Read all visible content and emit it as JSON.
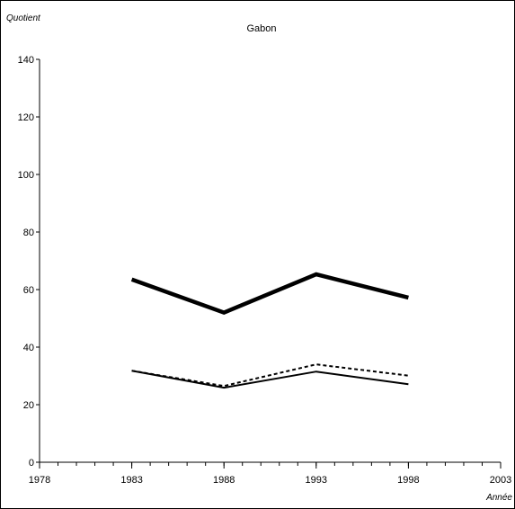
{
  "chart_data": {
    "type": "line",
    "title": "Gabon",
    "ylabel": "Quotient",
    "xlabel": "Année",
    "x_ticks": [
      "1978",
      "1983",
      "1988",
      "1993",
      "1998",
      "2003"
    ],
    "y_ticks": [
      "0",
      "20",
      "40",
      "60",
      "80",
      "100",
      "120",
      "140"
    ],
    "xlim": [
      1978,
      2003
    ],
    "ylim": [
      0,
      140
    ],
    "grid": false,
    "legend": "none",
    "series": [
      {
        "x": [
          1983,
          1988,
          1993,
          1998
        ],
        "values": [
          63.5,
          52,
          65.3,
          57.2
        ],
        "style": "thick",
        "color": "#000000"
      },
      {
        "x": [
          1983,
          1988,
          1993,
          1998
        ],
        "values": [
          31.8,
          26.5,
          34,
          30.1
        ],
        "style": "dashed",
        "color": "#000000"
      },
      {
        "x": [
          1983,
          1988,
          1993,
          1998
        ],
        "values": [
          31.8,
          25.9,
          31.5,
          27.1
        ],
        "style": "thin",
        "color": "#000000"
      }
    ]
  }
}
